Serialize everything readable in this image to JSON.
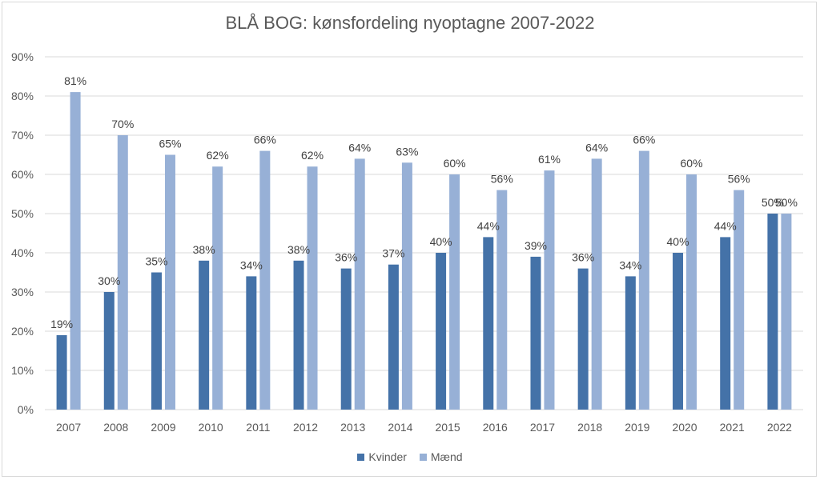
{
  "chart_data": {
    "type": "bar",
    "title": "BLÅ BOG: kønsfordeling nyoptagne 2007-2022",
    "categories": [
      "2007",
      "2008",
      "2009",
      "2010",
      "2011",
      "2012",
      "2013",
      "2014",
      "2015",
      "2016",
      "2017",
      "2018",
      "2019",
      "2020",
      "2021",
      "2022"
    ],
    "series": [
      {
        "name": "Kvinder",
        "color": "#4472a8",
        "values": [
          19,
          30,
          35,
          38,
          34,
          38,
          36,
          37,
          40,
          44,
          39,
          36,
          34,
          40,
          44,
          50
        ],
        "labels": [
          "19%",
          "30%",
          "35%",
          "38%",
          "34%",
          "38%",
          "36%",
          "37%",
          "40%",
          "44%",
          "39%",
          "36%",
          "34%",
          "40%",
          "44%",
          "50%"
        ]
      },
      {
        "name": "Mænd",
        "color": "#97b0d6",
        "values": [
          81,
          70,
          65,
          62,
          66,
          62,
          64,
          63,
          60,
          56,
          61,
          64,
          66,
          60,
          56,
          50
        ],
        "labels": [
          "81%",
          "70%",
          "65%",
          "62%",
          "66%",
          "62%",
          "64%",
          "63%",
          "60%",
          "56%",
          "61%",
          "64%",
          "66%",
          "60%",
          "56%",
          "50%"
        ]
      }
    ],
    "ylim": [
      0,
      90
    ],
    "yticks": [
      "0%",
      "10%",
      "20%",
      "30%",
      "40%",
      "50%",
      "60%",
      "70%",
      "80%",
      "90%"
    ],
    "grid": true,
    "legend_position": "bottom",
    "gridline_color": "#d9d9d9",
    "text_color": "#595959"
  }
}
